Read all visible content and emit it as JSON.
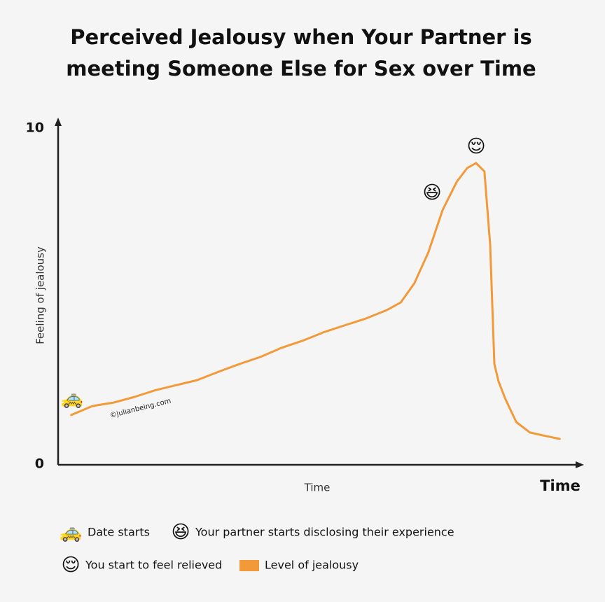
{
  "chart_data": {
    "type": "line",
    "title": [
      "Perceived Jealousy when Your Partner is",
      "meeting Someone Else for Sex over Time"
    ],
    "ylabel": "Feeling of jealousy",
    "xlabel": "Time",
    "x_axis_end_label": "Time",
    "watermark": "©julianbeing.com",
    "xlim": [
      0,
      100
    ],
    "ylim": [
      0,
      10
    ],
    "yticks": [
      0,
      10
    ],
    "grid": false,
    "x": [
      2.5,
      6.6,
      10.6,
      14.6,
      18.6,
      22.6,
      26.6,
      30.7,
      34.7,
      38.7,
      42.7,
      46.7,
      50.7,
      54.8,
      58.8,
      62.8,
      65.5,
      68.1,
      70.8,
      73.5,
      76.2,
      78.2,
      79.9,
      81.5,
      82.6,
      83.4,
      84.2,
      85.5,
      87.6,
      90.2,
      92.8,
      95.9
    ],
    "series": [
      {
        "name": "Level of jealousy",
        "color": "#f29a3a",
        "values": [
          1.46,
          1.73,
          1.83,
          2.0,
          2.2,
          2.35,
          2.5,
          2.75,
          2.98,
          3.19,
          3.46,
          3.67,
          3.92,
          4.13,
          4.33,
          4.58,
          4.81,
          5.38,
          6.31,
          7.56,
          8.4,
          8.81,
          8.96,
          8.71,
          6.52,
          2.98,
          2.46,
          1.94,
          1.25,
          0.94,
          0.85,
          0.75
        ]
      }
    ],
    "annotations": [
      {
        "icon": "🚕",
        "label": "Date starts"
      },
      {
        "icon": "😆",
        "label": "Your partner starts disclosing their experience"
      },
      {
        "icon": "😌",
        "label": "You start to feel relieved"
      }
    ]
  }
}
